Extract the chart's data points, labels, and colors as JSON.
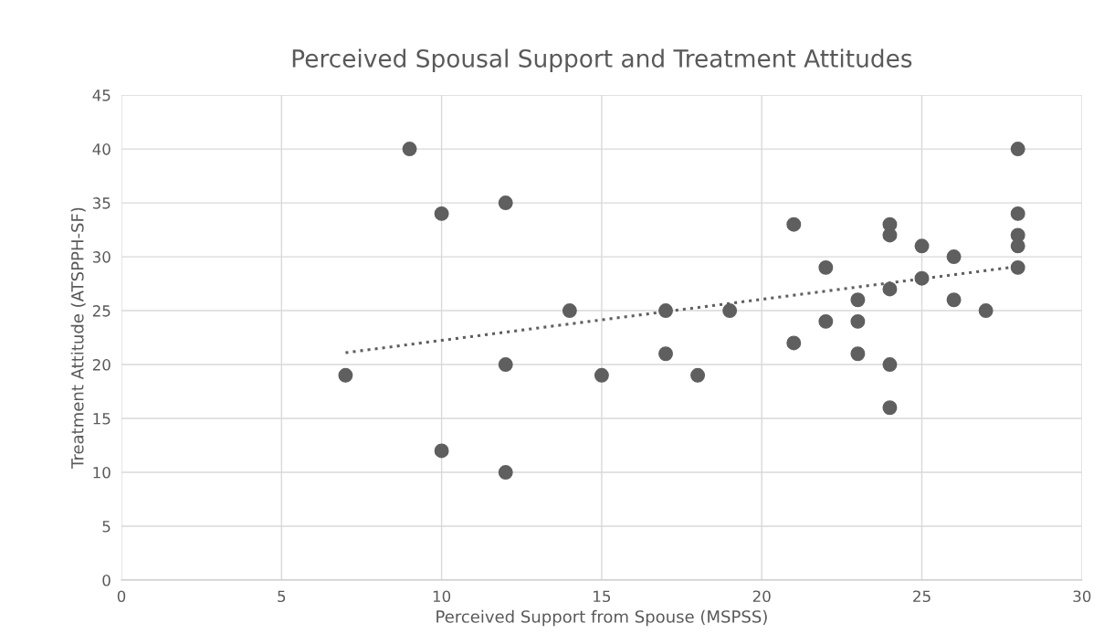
{
  "chart_data": {
    "type": "scatter",
    "title": "Perceived Spousal Support and Treatment Attitudes",
    "xlabel": "Perceived Support from Spouse (MSPSS)",
    "ylabel": "Treatment Attitude (ATSPPH-SF)",
    "xlim": [
      0,
      30
    ],
    "xticks": [
      0,
      5,
      10,
      15,
      20,
      25,
      30
    ],
    "ylim": [
      0,
      45
    ],
    "yticks": [
      0,
      5,
      10,
      15,
      20,
      25,
      30,
      35,
      40,
      45
    ],
    "grid": true,
    "legend": false,
    "marker": "circle",
    "series": [
      {
        "color": "#5f5f5f",
        "x": [
          7,
          9,
          10,
          10,
          12,
          12,
          12,
          14,
          15,
          17,
          17,
          18,
          19,
          21,
          21,
          22,
          22,
          23,
          23,
          23,
          24,
          24,
          24,
          24,
          24,
          25,
          25,
          26,
          26,
          27,
          28,
          28,
          28,
          28,
          28
        ],
        "values": [
          19,
          40,
          34,
          12,
          35,
          20,
          10,
          25,
          19,
          25,
          21,
          19,
          25,
          33,
          22,
          29,
          24,
          26,
          24,
          21,
          33,
          32,
          27,
          20,
          16,
          31,
          28,
          30,
          26,
          25,
          40,
          34,
          32,
          31,
          29
        ]
      },
      {
        "type": "line",
        "color": "#5f5f5f",
        "line_style": "dotted",
        "marker": "none",
        "x": [
          7,
          28
        ],
        "values": [
          21.1,
          29.1
        ]
      }
    ]
  }
}
